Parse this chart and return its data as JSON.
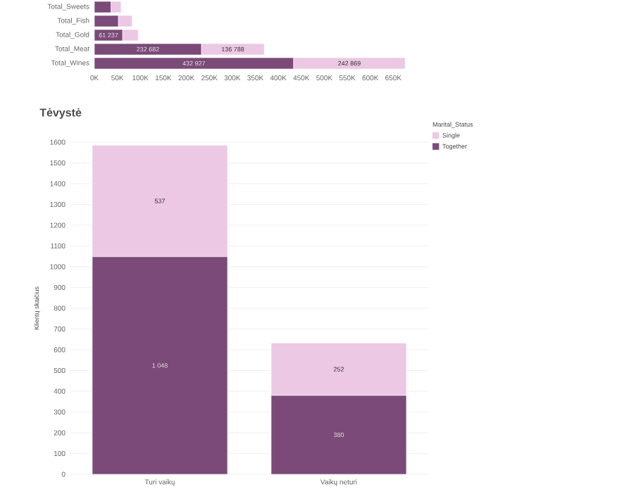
{
  "chart_data": [
    {
      "type": "bar",
      "orientation": "horizontal",
      "stacked": true,
      "categories": [
        "Total_Sweets",
        "Total_Fish",
        "Total_Gold",
        "Total_Meat",
        "Total_Wines"
      ],
      "series": [
        {
          "color": "#7b4a78",
          "values": [
            36000,
            52000,
            61237,
            232682,
            432927
          ],
          "value_labels": [
            null,
            null,
            "61 237",
            "232 682",
            "432 927"
          ]
        },
        {
          "color": "#ecc8e4",
          "values": [
            22000,
            30000,
            34000,
            136788,
            242869
          ],
          "value_labels": [
            null,
            null,
            null,
            "136 788",
            "242 869"
          ]
        }
      ],
      "xlim": [
        0,
        680000
      ],
      "xticks": [
        {
          "value": 0,
          "label": "0K"
        },
        {
          "value": 50000,
          "label": "50K"
        },
        {
          "value": 100000,
          "label": "100K"
        },
        {
          "value": 150000,
          "label": "150K"
        },
        {
          "value": 200000,
          "label": "200K"
        },
        {
          "value": 250000,
          "label": "250K"
        },
        {
          "value": 300000,
          "label": "300K"
        },
        {
          "value": 350000,
          "label": "350K"
        },
        {
          "value": 400000,
          "label": "400K"
        },
        {
          "value": 450000,
          "label": "450K"
        },
        {
          "value": 500000,
          "label": "500K"
        },
        {
          "value": 550000,
          "label": "550K"
        },
        {
          "value": 600000,
          "label": "600K"
        },
        {
          "value": 650000,
          "label": "650K"
        }
      ]
    },
    {
      "type": "bar",
      "stacked": true,
      "title": "Tėvystė",
      "ylabel": "Klientų skaičius",
      "legend_title": "Marital_Status",
      "legend": "top right",
      "grid": "y",
      "categories": [
        "Turi vaikų",
        "Vaikų neturi"
      ],
      "series": [
        {
          "name": "Together",
          "color": "#7b4a78",
          "values": [
            1048,
            380
          ],
          "value_labels": [
            "1 048",
            "380"
          ]
        },
        {
          "name": "Single",
          "color": "#ecc8e4",
          "values": [
            537,
            252
          ],
          "value_labels": [
            "537",
            "252"
          ]
        }
      ],
      "ylim": [
        0,
        1600
      ],
      "yticks": [
        0,
        100,
        200,
        300,
        400,
        500,
        600,
        700,
        800,
        900,
        1000,
        1100,
        1200,
        1300,
        1400,
        1500,
        1600
      ]
    }
  ]
}
